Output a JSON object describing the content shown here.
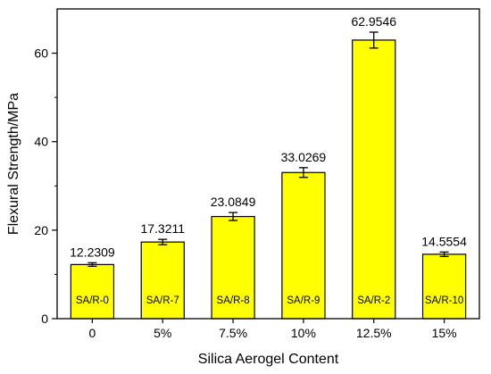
{
  "chart_data": {
    "type": "bar",
    "title": "",
    "xlabel": "Silica Aerogel Content",
    "ylabel": "Flexural Strength/MPa",
    "ylim": [
      0,
      70
    ],
    "yticks": [
      0,
      20,
      40,
      60
    ],
    "grid": false,
    "legend": "none",
    "categories": [
      "0",
      "5%",
      "7.5%",
      "10%",
      "12.5%",
      "15%"
    ],
    "values": [
      12.2309,
      17.3211,
      23.0849,
      33.0269,
      62.9546,
      14.5554
    ],
    "value_labels": [
      "12.2309",
      "17.3211",
      "23.0849",
      "33.0269",
      "62.9546",
      "14.5554"
    ],
    "bar_labels": [
      "SA/R-0",
      "SA/R-7",
      "SA/R-8",
      "SA/R-9",
      "SA/R-2",
      "SA/R-10"
    ],
    "errors": [
      0.4,
      0.6,
      0.9,
      1.1,
      1.8,
      0.5
    ],
    "bar_color": "#ffff00",
    "bar_edge_color": "#000000"
  }
}
